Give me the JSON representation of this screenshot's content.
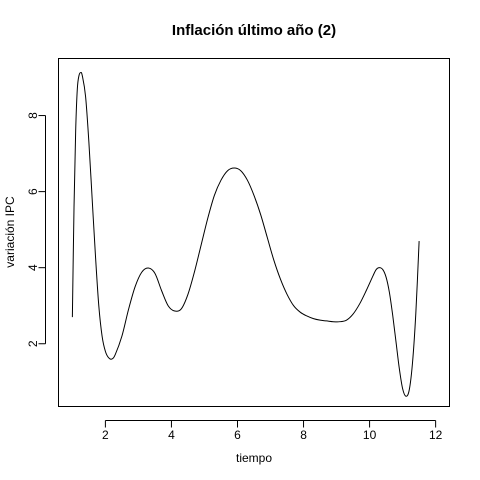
{
  "chart_data": {
    "type": "line",
    "title": "Inflación último año (2)",
    "xlabel": "tiempo",
    "ylabel": "variación IPC",
    "xlim": [
      0.58,
      12.42
    ],
    "ylim": [
      0.35,
      9.5
    ],
    "x_ticks": [
      2,
      4,
      6,
      8,
      10,
      12
    ],
    "y_ticks": [
      2,
      4,
      6,
      8
    ],
    "x_tick_labels": [
      "2",
      "4",
      "6",
      "8",
      "10",
      "12"
    ],
    "y_tick_labels": [
      "2",
      "4",
      "6",
      "8"
    ],
    "grid": false,
    "series": [
      {
        "name": "IPC",
        "color": "#000000",
        "points": [
          [
            1.0,
            2.7
          ],
          [
            1.05,
            5.6
          ],
          [
            1.1,
            7.6
          ],
          [
            1.15,
            8.7
          ],
          [
            1.2,
            9.05
          ],
          [
            1.25,
            9.13
          ],
          [
            1.3,
            9.05
          ],
          [
            1.4,
            8.5
          ],
          [
            1.5,
            7.3
          ],
          [
            1.6,
            5.8
          ],
          [
            1.7,
            4.3
          ],
          [
            1.8,
            3.0
          ],
          [
            1.9,
            2.2
          ],
          [
            2.0,
            1.8
          ],
          [
            2.1,
            1.63
          ],
          [
            2.2,
            1.6
          ],
          [
            2.3,
            1.72
          ],
          [
            2.5,
            2.2
          ],
          [
            2.7,
            2.9
          ],
          [
            2.9,
            3.5
          ],
          [
            3.1,
            3.88
          ],
          [
            3.3,
            3.99
          ],
          [
            3.5,
            3.85
          ],
          [
            3.7,
            3.4
          ],
          [
            3.9,
            3.0
          ],
          [
            4.1,
            2.86
          ],
          [
            4.3,
            2.92
          ],
          [
            4.5,
            3.3
          ],
          [
            4.7,
            3.9
          ],
          [
            4.9,
            4.6
          ],
          [
            5.1,
            5.3
          ],
          [
            5.3,
            5.9
          ],
          [
            5.5,
            6.3
          ],
          [
            5.7,
            6.55
          ],
          [
            5.9,
            6.62
          ],
          [
            6.1,
            6.55
          ],
          [
            6.3,
            6.3
          ],
          [
            6.5,
            5.9
          ],
          [
            6.7,
            5.4
          ],
          [
            6.9,
            4.8
          ],
          [
            7.1,
            4.2
          ],
          [
            7.3,
            3.7
          ],
          [
            7.5,
            3.3
          ],
          [
            7.7,
            3.0
          ],
          [
            7.9,
            2.83
          ],
          [
            8.1,
            2.73
          ],
          [
            8.3,
            2.66
          ],
          [
            8.5,
            2.62
          ],
          [
            8.7,
            2.6
          ],
          [
            8.9,
            2.58
          ],
          [
            9.1,
            2.58
          ],
          [
            9.3,
            2.62
          ],
          [
            9.5,
            2.78
          ],
          [
            9.7,
            3.05
          ],
          [
            9.9,
            3.4
          ],
          [
            10.1,
            3.78
          ],
          [
            10.2,
            3.95
          ],
          [
            10.3,
            4.0
          ],
          [
            10.4,
            3.95
          ],
          [
            10.5,
            3.75
          ],
          [
            10.6,
            3.35
          ],
          [
            10.7,
            2.75
          ],
          [
            10.8,
            2.05
          ],
          [
            10.9,
            1.35
          ],
          [
            11.0,
            0.82
          ],
          [
            11.1,
            0.62
          ],
          [
            11.2,
            0.78
          ],
          [
            11.3,
            1.5
          ],
          [
            11.4,
            2.8
          ],
          [
            11.5,
            4.7
          ]
        ]
      }
    ]
  }
}
